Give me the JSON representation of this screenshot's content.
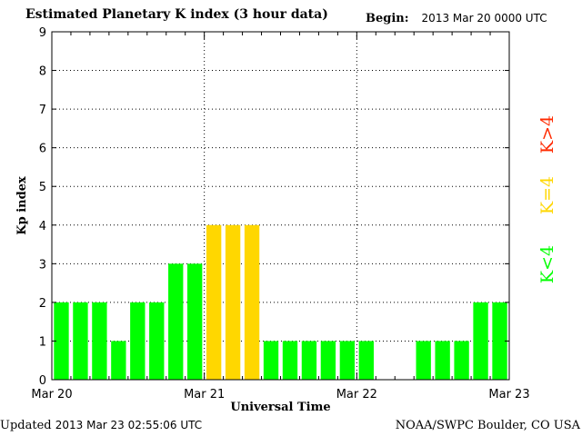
{
  "header": {
    "title": "Estimated Planetary K index (3 hour data)",
    "begin_label": "Begin:",
    "begin_value": "2013 Mar 20 0000 UTC"
  },
  "footer": {
    "updated_label": "Updated",
    "updated_value": "2013 Mar 23 02:55:06 UTC",
    "source": "NOAA/SWPC Boulder, CO USA"
  },
  "colors": {
    "below_4": "#00ff00",
    "equal_4": "#ffd700",
    "above_4": "#ff2a00"
  },
  "legend": {
    "below": "K<4",
    "equal": "K=4",
    "above": "K>4"
  },
  "chart_data": {
    "type": "bar",
    "title": "Estimated Planetary K index (3 hour data)",
    "xlabel": "Universal Time",
    "ylabel": "Kp index",
    "ylim": [
      0,
      9
    ],
    "yticks": [
      "0",
      "1",
      "2",
      "3",
      "4",
      "5",
      "6",
      "7",
      "8",
      "9"
    ],
    "xtick_labels": [
      "Mar 20",
      "Mar 21",
      "Mar 22",
      "Mar 23"
    ],
    "grid": true,
    "bin_hours": 3,
    "values": [
      2,
      2,
      2,
      1,
      2,
      2,
      3,
      3,
      4,
      4,
      4,
      1,
      1,
      1,
      1,
      1,
      1,
      null,
      null,
      1,
      1,
      1,
      2,
      2
    ]
  }
}
